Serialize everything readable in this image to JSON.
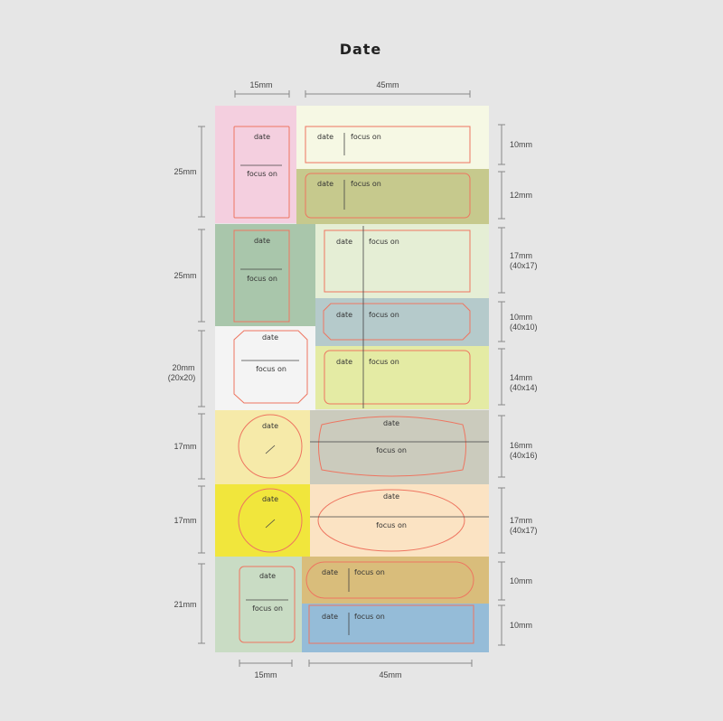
{
  "title": "Date",
  "dimensions": {
    "top_left": "15mm",
    "top_right": "45mm",
    "bottom_left": "15mm",
    "bottom_right": "45mm",
    "left": [
      {
        "lines": [
          "25mm"
        ]
      },
      {
        "lines": [
          "25mm"
        ]
      },
      {
        "lines": [
          "20mm",
          "(20x20)"
        ]
      },
      {
        "lines": [
          "17mm"
        ]
      },
      {
        "lines": [
          "17mm"
        ]
      },
      {
        "lines": [
          "21mm"
        ]
      }
    ],
    "right": [
      {
        "lines": [
          "10mm"
        ]
      },
      {
        "lines": [
          "12mm"
        ]
      },
      {
        "lines": [
          "17mm",
          "(40x17)"
        ]
      },
      {
        "lines": [
          "10mm",
          "(40x10)"
        ]
      },
      {
        "lines": [
          "14mm",
          "(40x14)"
        ]
      },
      {
        "lines": [
          "16mm",
          "(40x16)"
        ]
      },
      {
        "lines": [
          "17mm",
          "(40x17)"
        ]
      },
      {
        "lines": [
          "10mm"
        ]
      },
      {
        "lines": [
          "10mm"
        ]
      }
    ]
  },
  "label_date": "date",
  "label_focus": "focus on",
  "colors": {
    "outline": "#ee7560",
    "pink": "#f4cfdf",
    "cream": "#f6f8e4",
    "olive": "#c6c98d",
    "sage": "#a9c6ab",
    "mint_light": "#e5eed5",
    "blue_grey": "#b5cacb",
    "white": "#f4f4f4",
    "lime_light": "#e4eba4",
    "butter": "#f6eaa9",
    "grey_taupe": "#cbcbbd",
    "yellow": "#f1e63c",
    "peach": "#fbe3c3",
    "mint_green": "#c9dcc4",
    "tan": "#d9bd7b",
    "sky": "#95bcd8"
  }
}
